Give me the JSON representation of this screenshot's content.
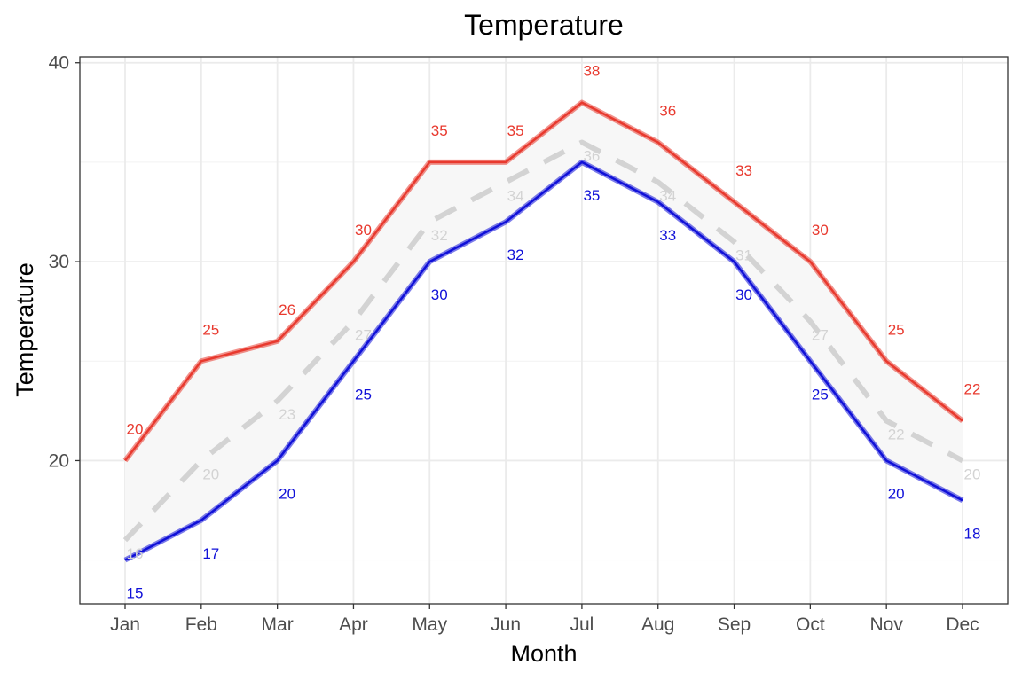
{
  "chart_data": {
    "type": "line",
    "title": "Temperature",
    "xlabel": "Month",
    "ylabel": "Temperature",
    "categories": [
      "Jan",
      "Feb",
      "Mar",
      "Apr",
      "May",
      "Jun",
      "Jul",
      "Aug",
      "Sep",
      "Oct",
      "Nov",
      "Dec"
    ],
    "ylim": [
      12.8,
      40.3
    ],
    "y_ticks": [
      20,
      30,
      40
    ],
    "grid": true,
    "series": [
      {
        "key": "high",
        "values": [
          20,
          25,
          26,
          30,
          35,
          35,
          38,
          36,
          33,
          30,
          25,
          22
        ],
        "color": "#e8392e",
        "style": "solid"
      },
      {
        "key": "avg",
        "values": [
          16,
          20,
          23,
          27,
          32,
          34,
          36,
          34,
          31,
          27,
          22,
          20
        ],
        "color": "#d3d3d3",
        "style": "dashed"
      },
      {
        "key": "low",
        "values": [
          15,
          17,
          20,
          25,
          30,
          32,
          35,
          33,
          30,
          25,
          20,
          18
        ],
        "color": "#1010d8",
        "style": "solid"
      }
    ],
    "ribbon": {
      "between": [
        "low",
        "high"
      ],
      "color": "#f7f7f7"
    }
  }
}
